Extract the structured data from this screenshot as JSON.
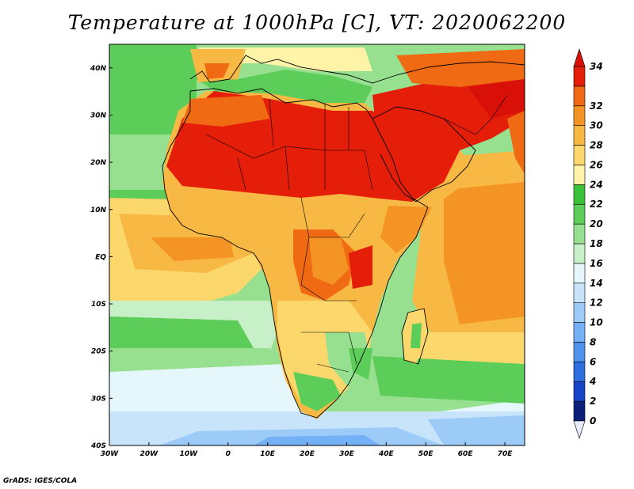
{
  "title": "Temperature at 1000hPa [C], VT: 2020062200",
  "credit": "GrADS: IGES/COLA",
  "axes": {
    "lon_range": [
      -30,
      75
    ],
    "lat_range": [
      -40,
      45
    ],
    "lon_ticks": [
      {
        "value": -30,
        "label": "30W"
      },
      {
        "value": -20,
        "label": "20W"
      },
      {
        "value": -10,
        "label": "10W"
      },
      {
        "value": 0,
        "label": "0"
      },
      {
        "value": 10,
        "label": "10E"
      },
      {
        "value": 20,
        "label": "20E"
      },
      {
        "value": 30,
        "label": "30E"
      },
      {
        "value": 40,
        "label": "40E"
      },
      {
        "value": 50,
        "label": "50E"
      },
      {
        "value": 60,
        "label": "60E"
      },
      {
        "value": 70,
        "label": "70E"
      }
    ],
    "lat_ticks": [
      {
        "value": 40,
        "label": "40N"
      },
      {
        "value": 30,
        "label": "30N"
      },
      {
        "value": 20,
        "label": "20N"
      },
      {
        "value": 10,
        "label": "10N"
      },
      {
        "value": 0,
        "label": "EQ"
      },
      {
        "value": -10,
        "label": "10S"
      },
      {
        "value": -20,
        "label": "20S"
      },
      {
        "value": -30,
        "label": "30S"
      },
      {
        "value": -40,
        "label": "40S"
      }
    ]
  },
  "colorbar": {
    "levels": [
      0,
      2,
      4,
      6,
      8,
      10,
      12,
      14,
      16,
      18,
      20,
      22,
      24,
      26,
      28,
      30,
      32,
      34
    ],
    "labels": [
      "0",
      "2",
      "4",
      "6",
      "8",
      "10",
      "12",
      "14",
      "16",
      "18",
      "20",
      "22",
      "24",
      "26",
      "28",
      "30",
      "32",
      "34"
    ],
    "colors": [
      "#0a1f78",
      "#1845c8",
      "#2e6fe0",
      "#4f93ee",
      "#74b0f5",
      "#9ccbf8",
      "#c8e4fb",
      "#e6f7fb",
      "#c8f0c8",
      "#96e090",
      "#5ccd58",
      "#3cc23a",
      "#fff3a8",
      "#fcd86c",
      "#f8b844",
      "#f39424",
      "#f06a14",
      "#e51e0a"
    ],
    "under_color": "#e6ecfb",
    "over_color": "#d81008"
  }
}
